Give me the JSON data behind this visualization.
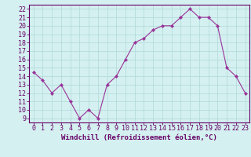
{
  "x": [
    0,
    1,
    2,
    3,
    4,
    5,
    6,
    7,
    8,
    9,
    10,
    11,
    12,
    13,
    14,
    15,
    16,
    17,
    18,
    19,
    20,
    21,
    22,
    23
  ],
  "y": [
    14.5,
    13.5,
    12,
    13,
    11,
    9,
    10,
    9,
    13,
    14,
    16,
    18,
    18.5,
    19.5,
    20,
    20,
    21,
    22,
    21,
    21,
    20,
    15,
    14,
    12
  ],
  "line_color": "#993399",
  "marker": "D",
  "marker_size": 2.2,
  "bg_color": "#d4f0f0",
  "grid_color": "#b0d8d8",
  "xlabel": "Windchill (Refroidissement éolien,°C)",
  "xlabel_fontsize": 6.5,
  "yticks": [
    9,
    10,
    11,
    12,
    13,
    14,
    15,
    16,
    17,
    18,
    19,
    20,
    21,
    22
  ],
  "xticks": [
    0,
    1,
    2,
    3,
    4,
    5,
    6,
    7,
    8,
    9,
    10,
    11,
    12,
    13,
    14,
    15,
    16,
    17,
    18,
    19,
    20,
    21,
    22,
    23
  ],
  "ylim": [
    8.5,
    22.5
  ],
  "xlim": [
    -0.5,
    23.5
  ],
  "axis_color": "#660066",
  "tick_color": "#660066",
  "spine_color": "#660066",
  "tick_fontsize": 6,
  "linewidth": 0.8
}
